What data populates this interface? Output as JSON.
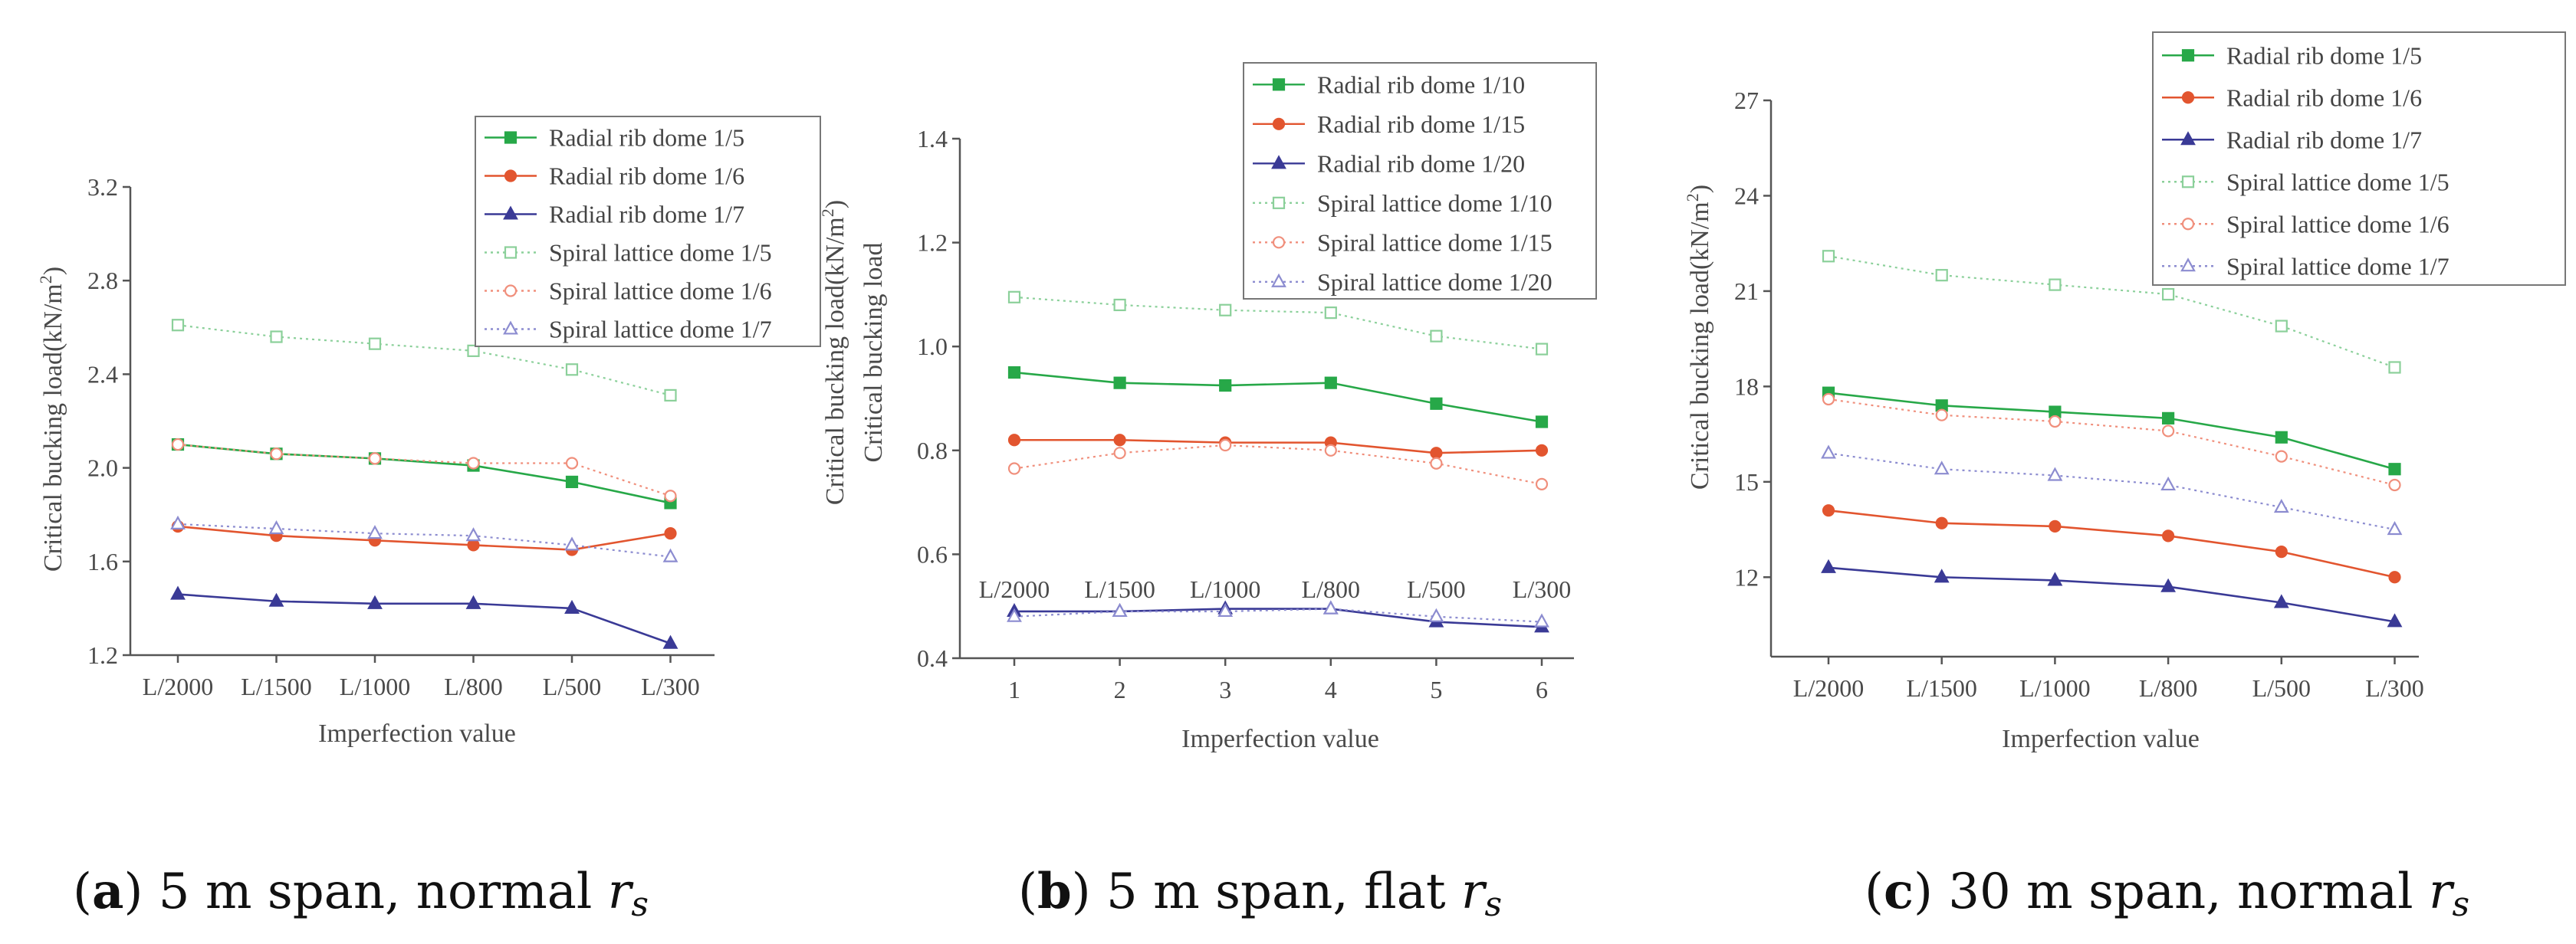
{
  "colors": {
    "green": "#27a848",
    "red": "#e2552f",
    "blue": "#3a3a96",
    "lightgreen": "#8bd09a",
    "lightred": "#f08f7c",
    "lightblue": "#8c8cd0",
    "axis": "#555555"
  },
  "chart_data": [
    {
      "type": "line",
      "xlabel": "Imperfection value",
      "ylabel": "Critical bucking load(kN/m²)",
      "ylabel_main": "Critical bucking load(kN/m",
      "ylabel_sup": "2",
      "ylabel_end": ")",
      "categories": [
        "L/2000",
        "L/1500",
        "L/1000",
        "L/800",
        "L/500",
        "L/300"
      ],
      "ylim": [
        1.2,
        3.2
      ],
      "yticks": [
        "1.2",
        "1.6",
        "2.0",
        "2.4",
        "2.8",
        "3.2"
      ],
      "caption": {
        "letter": "a",
        "text": " 5 m span, normal ",
        "var": "r",
        "sub": "s"
      },
      "series": [
        {
          "name": "Radial rib dome 1/5",
          "color": "#27a848",
          "marker": "square",
          "filled": true,
          "dashed": false,
          "values": [
            2.1,
            2.06,
            2.04,
            2.01,
            1.94,
            1.85
          ]
        },
        {
          "name": "Radial rib dome 1/6",
          "color": "#e2552f",
          "marker": "circle",
          "filled": true,
          "dashed": false,
          "values": [
            1.75,
            1.71,
            1.69,
            1.67,
            1.65,
            1.72
          ]
        },
        {
          "name": "Radial rib dome 1/7",
          "color": "#3a3a96",
          "marker": "triangle",
          "filled": true,
          "dashed": false,
          "values": [
            1.46,
            1.43,
            1.42,
            1.42,
            1.4,
            1.25
          ]
        },
        {
          "name": "Spiral lattice dome 1/5",
          "color": "#8bd09a",
          "marker": "square",
          "filled": false,
          "dashed": true,
          "values": [
            2.61,
            2.56,
            2.53,
            2.5,
            2.42,
            2.31
          ]
        },
        {
          "name": "Spiral lattice dome 1/6",
          "color": "#f08f7c",
          "marker": "circle",
          "filled": false,
          "dashed": true,
          "values": [
            2.1,
            2.06,
            2.04,
            2.02,
            2.02,
            1.88
          ]
        },
        {
          "name": "Spiral lattice dome 1/7",
          "color": "#8c8cd0",
          "marker": "triangle",
          "filled": false,
          "dashed": true,
          "values": [
            1.76,
            1.74,
            1.72,
            1.71,
            1.67,
            1.62
          ]
        }
      ]
    },
    {
      "type": "line",
      "xlabel": "Imperfection value",
      "ylabel": "Critical bucking load(kN/m²)",
      "ylabel_main": "Critical bucking load(kN/m",
      "ylabel_sup": "2",
      "ylabel_end": ")",
      "ylabel_extra": "Critical bucking load",
      "x": [
        1,
        2,
        3,
        4,
        5,
        6
      ],
      "xticks": [
        "1",
        "2",
        "3",
        "4",
        "5",
        "6"
      ],
      "categories": [
        "L/2000",
        "L/1500",
        "L/1000",
        "L/800",
        "L/500",
        "L/300"
      ],
      "ylim": [
        0.4,
        1.4
      ],
      "yticks": [
        "0.4",
        "0.6",
        "0.8",
        "1.0",
        "1.2",
        "1.4"
      ],
      "caption": {
        "letter": "b",
        "text": " 5 m span, flat ",
        "var": "r",
        "sub": "s"
      },
      "series": [
        {
          "name": "Radial rib dome 1/10",
          "color": "#27a848",
          "marker": "square",
          "filled": true,
          "dashed": false,
          "values": [
            0.95,
            0.93,
            0.925,
            0.93,
            0.89,
            0.855
          ]
        },
        {
          "name": "Radial rib dome 1/15",
          "color": "#e2552f",
          "marker": "circle",
          "filled": true,
          "dashed": false,
          "values": [
            0.82,
            0.82,
            0.815,
            0.815,
            0.795,
            0.8
          ]
        },
        {
          "name": "Radial rib dome 1/20",
          "color": "#3a3a96",
          "marker": "triangle",
          "filled": true,
          "dashed": false,
          "values": [
            0.49,
            0.49,
            0.495,
            0.495,
            0.47,
            0.46
          ]
        },
        {
          "name": "Spiral lattice dome 1/10",
          "color": "#8bd09a",
          "marker": "square",
          "filled": false,
          "dashed": true,
          "values": [
            1.095,
            1.08,
            1.07,
            1.065,
            1.02,
            0.995
          ]
        },
        {
          "name": "Spiral lattice dome 1/15",
          "color": "#f08f7c",
          "marker": "circle",
          "filled": false,
          "dashed": true,
          "values": [
            0.765,
            0.795,
            0.81,
            0.8,
            0.775,
            0.735
          ]
        },
        {
          "name": "Spiral lattice dome 1/20",
          "color": "#8c8cd0",
          "marker": "triangle",
          "filled": false,
          "dashed": true,
          "values": [
            0.48,
            0.49,
            0.49,
            0.495,
            0.48,
            0.47
          ]
        }
      ]
    },
    {
      "type": "line",
      "xlabel": "Imperfection value",
      "ylabel": "Critical bucking load(kN/m²)",
      "ylabel_main": "Critical bucking load(kN/m",
      "ylabel_sup": "2",
      "ylabel_end": ")",
      "categories": [
        "L/2000",
        "L/1500",
        "L/1000",
        "L/800",
        "L/500",
        "L/300"
      ],
      "ylim": [
        9.5,
        27
      ],
      "yticks": [
        "12",
        "15",
        "18",
        "21",
        "24",
        "27"
      ],
      "caption": {
        "letter": "c",
        "text": " 30 m span, normal ",
        "var": "r",
        "sub": "s"
      },
      "series": [
        {
          "name": "Radial rib dome 1/5",
          "color": "#27a848",
          "marker": "square",
          "filled": true,
          "dashed": false,
          "values": [
            17.8,
            17.4,
            17.2,
            17.0,
            16.4,
            15.4
          ]
        },
        {
          "name": "Radial rib dome 1/6",
          "color": "#e2552f",
          "marker": "circle",
          "filled": true,
          "dashed": false,
          "values": [
            14.1,
            13.7,
            13.6,
            13.3,
            12.8,
            12.0
          ]
        },
        {
          "name": "Radial rib dome 1/7",
          "color": "#3a3a96",
          "marker": "triangle",
          "filled": true,
          "dashed": false,
          "values": [
            12.3,
            12.0,
            11.9,
            11.7,
            11.2,
            10.6
          ]
        },
        {
          "name": "Spiral lattice dome 1/5",
          "color": "#8bd09a",
          "marker": "square",
          "filled": false,
          "dashed": true,
          "values": [
            22.1,
            21.5,
            21.2,
            20.9,
            19.9,
            18.6
          ]
        },
        {
          "name": "Spiral lattice dome 1/6",
          "color": "#f08f7c",
          "marker": "circle",
          "filled": false,
          "dashed": true,
          "values": [
            17.6,
            17.1,
            16.9,
            16.6,
            15.8,
            14.9
          ]
        },
        {
          "name": "Spiral lattice dome 1/7",
          "color": "#8c8cd0",
          "marker": "triangle",
          "filled": false,
          "dashed": true,
          "values": [
            15.9,
            15.4,
            15.2,
            14.9,
            14.2,
            13.5
          ]
        }
      ]
    }
  ]
}
